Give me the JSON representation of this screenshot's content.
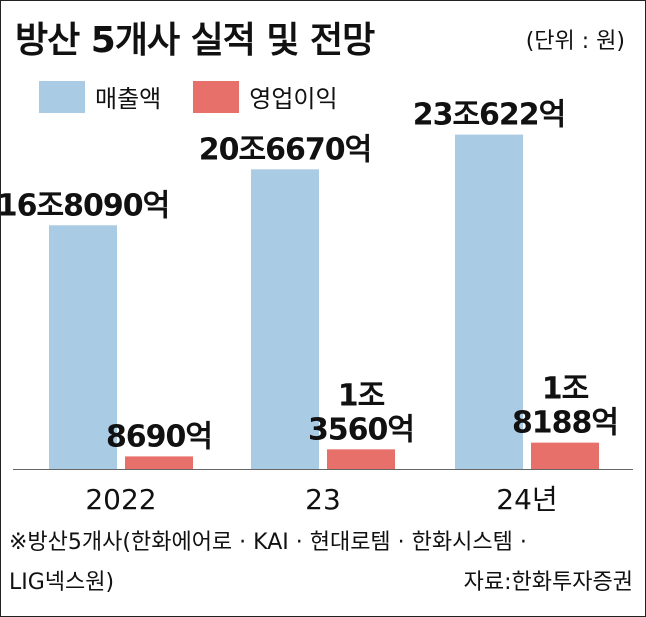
{
  "header": {
    "title": "방산 5개사 실적 및 전망",
    "unit": "(단위 : 원)"
  },
  "legend": [
    {
      "name": "매출액",
      "color": "#a9cbe4"
    },
    {
      "name": "영업이익",
      "color": "#e8706a"
    }
  ],
  "footnote": {
    "line1": "※방산5개사(한화에어로 · KAI · 현대로템 · 한화시스템 ·",
    "line2": "LIG넥스원)",
    "source": "자료:한화투자증권"
  },
  "chart_data": {
    "type": "bar",
    "categories": [
      "2022",
      "23",
      "24년"
    ],
    "series": [
      {
        "name": "매출액",
        "color": "#a9cbe4",
        "values": [
          168090,
          206670,
          230622
        ],
        "labels": [
          "16조8090억",
          "20조6670억",
          "23조622억"
        ]
      },
      {
        "name": "영업이익",
        "color": "#e8706a",
        "values": [
          8690,
          13560,
          18188
        ],
        "labels": [
          "8690억",
          "1조\n3560억",
          "1조\n8188억"
        ]
      }
    ],
    "value_unit": "억원",
    "title": "방산 5개사 실적 및 전망",
    "xlabel": "",
    "ylabel": "",
    "ylim": [
      0,
      240000
    ],
    "grid": false,
    "legend_position": "top-left"
  }
}
